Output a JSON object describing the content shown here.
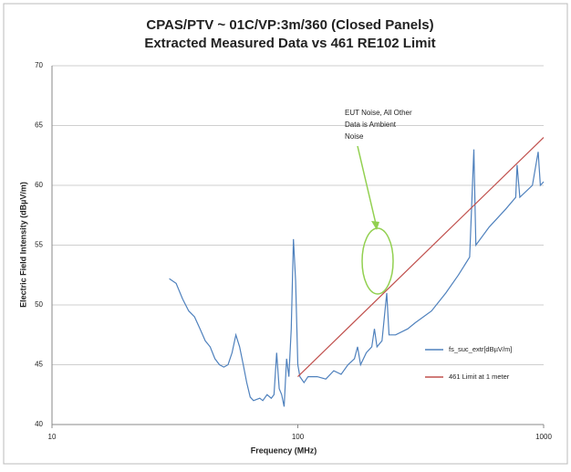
{
  "chart_data": {
    "type": "line",
    "title": [
      "CPAS/PTV ~ 01C/VP:3m/360 (Closed Panels)",
      "Extracted Measured Data vs 461 RE102 Limit"
    ],
    "xlabel": "Frequency (MHz)",
    "ylabel": "Electric Field Intensity (dBµV/m)",
    "xscale": "log",
    "xlim": [
      10,
      1000
    ],
    "xticks": [
      10,
      100,
      1000
    ],
    "ylim": [
      40,
      70
    ],
    "yticks": [
      40,
      45,
      50,
      55,
      60,
      65,
      70
    ],
    "grid": true,
    "legend": "right",
    "annotation": [
      "EUT Noise, All Other",
      "Data is Ambient",
      "Noise"
    ],
    "annotation_color": "#92d050",
    "series": [
      {
        "name": "fs_suc_extr[dBµV/m]",
        "color": "#4f81bd",
        "x": [
          30,
          32,
          34,
          36,
          38,
          40,
          42,
          44,
          46,
          48,
          50,
          52,
          54,
          56,
          58,
          60,
          62,
          64,
          66,
          70,
          72,
          75,
          78,
          80,
          82,
          84,
          86,
          88,
          90,
          92,
          94,
          96,
          98,
          100,
          102,
          106,
          110,
          120,
          130,
          140,
          150,
          160,
          170,
          175,
          180,
          190,
          200,
          205,
          210,
          220,
          230,
          235,
          250,
          280,
          300,
          350,
          400,
          450,
          500,
          520,
          530,
          600,
          700,
          770,
          780,
          800,
          900,
          950,
          970,
          1000
        ],
        "values": [
          52.2,
          51.8,
          50.5,
          49.5,
          49,
          48,
          47,
          46.5,
          45.5,
          45,
          44.8,
          45,
          46,
          47.5,
          46.5,
          45,
          43.5,
          42.3,
          42,
          42.2,
          42,
          42.5,
          42.2,
          42.5,
          46,
          43,
          42.5,
          41.5,
          45.5,
          44,
          48,
          55.5,
          52,
          45,
          44,
          43.5,
          44,
          44,
          43.8,
          44.5,
          44.2,
          45,
          45.5,
          46.5,
          45,
          46,
          46.5,
          48,
          46.5,
          47,
          51,
          47.5,
          47.5,
          48,
          48.5,
          49.5,
          51,
          52.5,
          54,
          63,
          55,
          56.5,
          58,
          59,
          61.7,
          59,
          60,
          62.8,
          60,
          60.3
        ]
      },
      {
        "name": "461 Limit at 1 meter",
        "color": "#c0504d",
        "x": [
          100,
          1000
        ],
        "values": [
          44,
          64
        ]
      }
    ]
  }
}
